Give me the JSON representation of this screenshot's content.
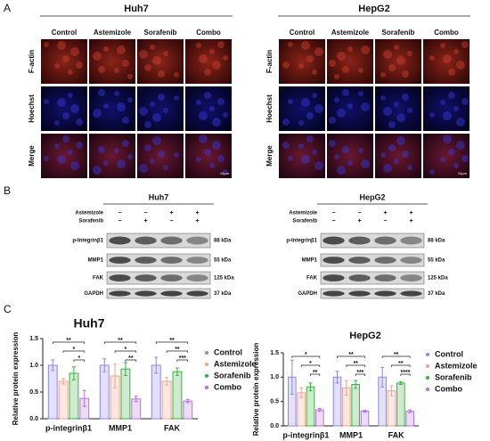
{
  "panel_a": {
    "label": "A",
    "cell_lines": [
      {
        "title": "Huh7",
        "columns": [
          "Control",
          "Astemizole",
          "Sorafenib",
          "Combo"
        ],
        "rows": [
          "F-actin",
          "Hoechst",
          "Merge"
        ],
        "scale": "10μm"
      },
      {
        "title": "HepG2",
        "columns": [
          "Control",
          "Astemizole",
          "Sorafenib",
          "Combo"
        ],
        "rows": [
          "F-actin",
          "Hoechst",
          "Merge"
        ],
        "scale": "10μm"
      }
    ]
  },
  "panel_b": {
    "label": "B",
    "blots": [
      {
        "title": "Huh7",
        "treatments": [
          {
            "name": "Astemizole",
            "signs": [
              "−",
              "−",
              "+",
              "+"
            ]
          },
          {
            "name": "Sorafenib",
            "signs": [
              "−",
              "+",
              "−",
              "+"
            ]
          }
        ],
        "proteins": [
          {
            "name": "p-Integrinβ1",
            "size": "88 kDa"
          },
          {
            "name": "MMP1",
            "size": "55 kDa"
          },
          {
            "name": "FAK",
            "size": "125 kDa"
          },
          {
            "name": "GAPDH",
            "size": "37 kDa"
          }
        ]
      },
      {
        "title": "HepG2",
        "treatments": [
          {
            "name": "Astemizole",
            "signs": [
              "−",
              "−",
              "+",
              "+"
            ]
          },
          {
            "name": "Sorafenib",
            "signs": [
              "−",
              "+",
              "−",
              "+"
            ]
          }
        ],
        "proteins": [
          {
            "name": "p-Integrinβ1",
            "size": "88 kDa"
          },
          {
            "name": "MMP1",
            "size": "55 kDa"
          },
          {
            "name": "FAK",
            "size": "125 kDa"
          },
          {
            "name": "GAPDH",
            "size": "37 kDa"
          }
        ]
      }
    ]
  },
  "panel_c": {
    "label": "C"
  },
  "chart_data": [
    {
      "type": "bar",
      "title": "Huh7",
      "y_label": "Relative protein expression",
      "categories": [
        "p-integrinβ1",
        "MMP1",
        "FAK"
      ],
      "series": [
        {
          "name": "Control",
          "color": "#8c86e8",
          "values": [
            1.0,
            1.0,
            1.0
          ],
          "errors": [
            0.1,
            0.12,
            0.15
          ]
        },
        {
          "name": "Astemizole",
          "color": "#f0a58a",
          "values": [
            0.7,
            0.8,
            0.7
          ],
          "errors": [
            0.05,
            0.22,
            0.07
          ]
        },
        {
          "name": "Sorafenib",
          "color": "#3cb043",
          "values": [
            0.85,
            0.93,
            0.88
          ],
          "errors": [
            0.12,
            0.12,
            0.07
          ]
        },
        {
          "name": "Combo",
          "color": "#b86ee0",
          "values": [
            0.38,
            0.37,
            0.33
          ],
          "errors": [
            0.15,
            0.05,
            0.03
          ]
        }
      ],
      "ylim": [
        0,
        1.5
      ],
      "yticks": [
        {
          "value": 0,
          "label": "0.0"
        },
        {
          "value": 0.5,
          "label": "0.5"
        },
        {
          "value": 1,
          "label": "1.0"
        },
        {
          "value": 1.5,
          "label": "1.5"
        }
      ],
      "brackets": [
        [
          {
            "pair": [
              "Control",
              "Combo"
            ],
            "label": "**"
          },
          {
            "pair": [
              "Astemizole",
              "Combo"
            ],
            "label": "*"
          },
          {
            "pair": [
              "Sorafenib",
              "Combo"
            ],
            "label": "*"
          }
        ],
        [
          {
            "pair": [
              "Control",
              "Combo"
            ],
            "label": "**"
          },
          {
            "pair": [
              "Astemizole",
              "Combo"
            ],
            "label": "*"
          },
          {
            "pair": [
              "Sorafenib",
              "Combo"
            ],
            "label": "**"
          }
        ],
        [
          {
            "pair": [
              "Control",
              "Combo"
            ],
            "label": "**"
          },
          {
            "pair": [
              "Astemizole",
              "Combo"
            ],
            "label": "**"
          },
          {
            "pair": [
              "Sorafenib",
              "Combo"
            ],
            "label": "***"
          }
        ]
      ]
    },
    {
      "type": "bar",
      "title": "HepG2",
      "y_label": "Relative protein expression",
      "categories": [
        "p-integrinβ1",
        "MMP1",
        "FAK"
      ],
      "series": [
        {
          "name": "Control",
          "color": "#8c86e8",
          "values": [
            1.0,
            1.0,
            1.0
          ],
          "errors": [
            0.35,
            0.12,
            0.2
          ]
        },
        {
          "name": "Astemizole",
          "color": "#f0a58a",
          "values": [
            0.68,
            0.78,
            0.72
          ],
          "errors": [
            0.1,
            0.15,
            0.1
          ]
        },
        {
          "name": "Sorafenib",
          "color": "#3cb043",
          "values": [
            0.8,
            0.85,
            0.88
          ],
          "errors": [
            0.08,
            0.08,
            0.03
          ]
        },
        {
          "name": "Combo",
          "color": "#b86ee0",
          "values": [
            0.33,
            0.3,
            0.3
          ],
          "errors": [
            0.03,
            0.02,
            0.03
          ]
        }
      ],
      "ylim": [
        0,
        1.5
      ],
      "yticks": [
        {
          "value": 0,
          "label": "0.0"
        },
        {
          "value": 0.5,
          "label": "0.5"
        },
        {
          "value": 1,
          "label": "1.0"
        },
        {
          "value": 1.5,
          "label": "1.5"
        }
      ],
      "brackets": [
        [
          {
            "pair": [
              "Control",
              "Combo"
            ],
            "label": "*"
          },
          {
            "pair": [
              "Astemizole",
              "Combo"
            ],
            "label": "*"
          },
          {
            "pair": [
              "Sorafenib",
              "Combo"
            ],
            "label": "**"
          }
        ],
        [
          {
            "pair": [
              "Control",
              "Combo"
            ],
            "label": "**"
          },
          {
            "pair": [
              "Astemizole",
              "Combo"
            ],
            "label": "**"
          },
          {
            "pair": [
              "Sorafenib",
              "Combo"
            ],
            "label": "***"
          }
        ],
        [
          {
            "pair": [
              "Control",
              "Combo"
            ],
            "label": "**"
          },
          {
            "pair": [
              "Astemizole",
              "Combo"
            ],
            "label": "**"
          },
          {
            "pair": [
              "Sorafenib",
              "Combo"
            ],
            "label": "****"
          }
        ]
      ]
    }
  ]
}
